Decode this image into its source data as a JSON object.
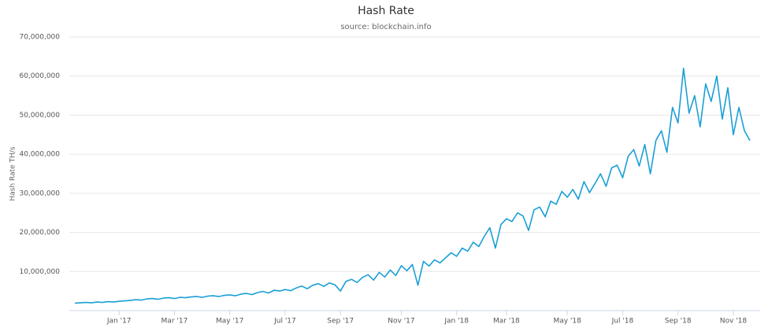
{
  "chart_data": {
    "type": "line",
    "title": "Hash Rate",
    "subtitle": "source: blockchain.info",
    "y_label": "Hash Rate TH/s",
    "color": "#1a9fd6",
    "grid": true,
    "ylim": [
      0,
      70000000
    ],
    "yticks": [
      {
        "value": 10000000,
        "label": "10,000,000"
      },
      {
        "value": 20000000,
        "label": "20,000,000"
      },
      {
        "value": 30000000,
        "label": "30,000,000"
      },
      {
        "value": 40000000,
        "label": "40,000,000"
      },
      {
        "value": 50000000,
        "label": "50,000,000"
      },
      {
        "value": 60000000,
        "label": "60,000,000"
      },
      {
        "value": 70000000,
        "label": "70,000,000"
      }
    ],
    "categories": [
      null,
      null,
      null,
      null,
      null,
      null,
      null,
      null,
      "Jan '17",
      null,
      null,
      null,
      null,
      null,
      null,
      null,
      null,
      null,
      "Mar '17",
      null,
      null,
      null,
      null,
      null,
      null,
      null,
      null,
      null,
      "May '17",
      null,
      null,
      null,
      null,
      null,
      null,
      null,
      null,
      null,
      "Jul '17",
      null,
      null,
      null,
      null,
      null,
      null,
      null,
      null,
      null,
      "Sep '17",
      null,
      null,
      null,
      null,
      null,
      null,
      null,
      null,
      null,
      null,
      "Nov '17",
      null,
      null,
      null,
      null,
      null,
      null,
      null,
      null,
      null,
      "Jan '18",
      null,
      null,
      null,
      null,
      null,
      null,
      null,
      null,
      "Mar '18",
      null,
      null,
      null,
      null,
      null,
      null,
      null,
      null,
      null,
      null,
      "May '18",
      null,
      null,
      null,
      null,
      null,
      null,
      null,
      null,
      null,
      "Jul '18",
      null,
      null,
      null,
      null,
      null,
      null,
      null,
      null,
      null,
      "Sep '18",
      null,
      null,
      null,
      null,
      null,
      null,
      null,
      null,
      null,
      "Nov '18",
      null,
      null,
      null
    ],
    "values": [
      1900000,
      2000000,
      2100000,
      2000000,
      2200000,
      2100000,
      2300000,
      2200000,
      2400000,
      2500000,
      2600000,
      2800000,
      2700000,
      3000000,
      3100000,
      2900000,
      3200000,
      3300000,
      3100000,
      3400000,
      3300000,
      3500000,
      3600000,
      3400000,
      3700000,
      3800000,
      3600000,
      3900000,
      4000000,
      3800000,
      4200000,
      4400000,
      4100000,
      4600000,
      4900000,
      4500000,
      5200000,
      5000000,
      5400000,
      5100000,
      5800000,
      6300000,
      5600000,
      6500000,
      6900000,
      6200000,
      7100000,
      6600000,
      5000000,
      7500000,
      8000000,
      7200000,
      8500000,
      9200000,
      7800000,
      9800000,
      8600000,
      10400000,
      9000000,
      11500000,
      10200000,
      11800000,
      6500000,
      12600000,
      11400000,
      13000000,
      12200000,
      13500000,
      14800000,
      13900000,
      16000000,
      15200000,
      17500000,
      16400000,
      19000000,
      21200000,
      16000000,
      22000000,
      23500000,
      22800000,
      25000000,
      24200000,
      20500000,
      25800000,
      26500000,
      24000000,
      28000000,
      27200000,
      30500000,
      29000000,
      31000000,
      28500000,
      33000000,
      30200000,
      32500000,
      35000000,
      31800000,
      36500000,
      37200000,
      34000000,
      39500000,
      41200000,
      37000000,
      42500000,
      35000000,
      43500000,
      46000000,
      40500000,
      52000000,
      48000000,
      62000000,
      50500000,
      55000000,
      47000000,
      58000000,
      53500000,
      60000000,
      49000000,
      57000000,
      45000000,
      52000000,
      46000000,
      43500000
    ]
  }
}
